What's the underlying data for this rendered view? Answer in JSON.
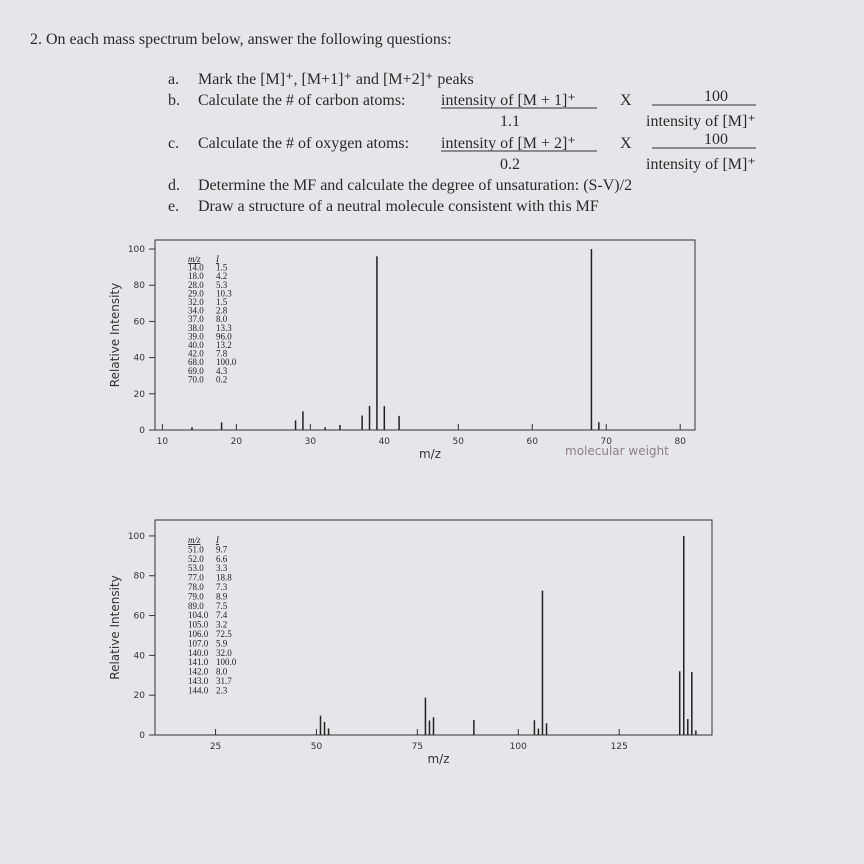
{
  "question": "2. On each mass spectrum below, answer the following questions:",
  "items": [
    {
      "label": "a.",
      "text": "Mark the [M]⁺, [M+1]⁺ and [M+2]⁺ peaks"
    },
    {
      "label": "b.",
      "text": "Calculate the # of carbon atoms:",
      "numerator": "intensity of [M + 1]⁺",
      "denominator": "1.1",
      "times": "X",
      "factor_numerator": "100",
      "factor_denominator": "intensity of [M]⁺"
    },
    {
      "label": "c.",
      "text": "Calculate the # of oxygen atoms:",
      "numerator": "intensity of [M + 2]⁺",
      "denominator": "0.2",
      "times": "X",
      "factor_numerator": "100",
      "factor_denominator": "intensity of [M]⁺"
    },
    {
      "label": "d.",
      "text": "Determine the MF and calculate the degree of unsaturation: (S-V)/2"
    },
    {
      "label": "e.",
      "text": "Draw a structure of a neutral molecule consistent with this MF"
    }
  ],
  "chart_data": [
    {
      "type": "bar",
      "xlabel": "m/z",
      "ylabel": "Relative Intensity",
      "color": "#222222",
      "x": [
        14,
        18,
        28,
        29,
        32,
        34,
        37,
        38,
        39,
        40,
        42,
        68,
        69,
        70
      ],
      "values": [
        1.5,
        4.2,
        5.3,
        10.3,
        1.5,
        2.8,
        8.0,
        13.3,
        96.0,
        13.2,
        7.8,
        100.0,
        4.3,
        0.2
      ],
      "xlim": [
        9,
        82
      ],
      "xticks": [
        10,
        20,
        30,
        40,
        50,
        60,
        70,
        80
      ],
      "ylim": [
        0,
        105
      ],
      "yticks": [
        0,
        20,
        40,
        60,
        80,
        100
      ],
      "table": {
        "header": [
          "m/z",
          "I"
        ],
        "rows": [
          [
            "14.0",
            "1.5"
          ],
          [
            "18.0",
            "4.2"
          ],
          [
            "28.0",
            "5.3"
          ],
          [
            "29.0",
            "10.3"
          ],
          [
            "32.0",
            "1.5"
          ],
          [
            "34.0",
            "2.8"
          ],
          [
            "37.0",
            "8.0"
          ],
          [
            "38.0",
            "13.3"
          ],
          [
            "39.0",
            "96.0"
          ],
          [
            "40.0",
            "13.2"
          ],
          [
            "42.0",
            "7.8"
          ],
          [
            "68.0",
            "100.0"
          ],
          [
            "69.0",
            "4.3"
          ],
          [
            "70.0",
            "0.2"
          ]
        ]
      },
      "annotation": "molecular weight"
    },
    {
      "type": "bar",
      "xlabel": "m/z",
      "ylabel": "Relative Intensity",
      "color": "#222222",
      "x": [
        51,
        52,
        53,
        77,
        78,
        79,
        89,
        104,
        105,
        106,
        107,
        140,
        141,
        142,
        143,
        144
      ],
      "values": [
        9.7,
        6.6,
        3.3,
        18.8,
        7.3,
        8.9,
        7.5,
        7.4,
        3.2,
        72.5,
        5.9,
        32.0,
        100.0,
        8.0,
        31.7,
        2.3
      ],
      "xlim": [
        10,
        148
      ],
      "xticks": [
        25,
        50,
        75,
        100,
        125
      ],
      "ylim": [
        0,
        108
      ],
      "yticks": [
        0,
        20,
        40,
        60,
        80,
        100
      ],
      "table": {
        "header": [
          "m/z",
          "I"
        ],
        "rows": [
          [
            "51.0",
            "9.7"
          ],
          [
            "52.0",
            "6.6"
          ],
          [
            "53.0",
            "3.3"
          ],
          [
            "77.0",
            "18.8"
          ],
          [
            "78.0",
            "7.3"
          ],
          [
            "79.0",
            "8.9"
          ],
          [
            "89.0",
            "7.5"
          ],
          [
            "104.0",
            "7.4"
          ],
          [
            "105.0",
            "3.2"
          ],
          [
            "106.0",
            "72.5"
          ],
          [
            "107.0",
            "5.9"
          ],
          [
            "140.0",
            "32.0"
          ],
          [
            "141.0",
            "100.0"
          ],
          [
            "142.0",
            "8.0"
          ],
          [
            "143.0",
            "31.7"
          ],
          [
            "144.0",
            "2.3"
          ]
        ]
      }
    }
  ]
}
